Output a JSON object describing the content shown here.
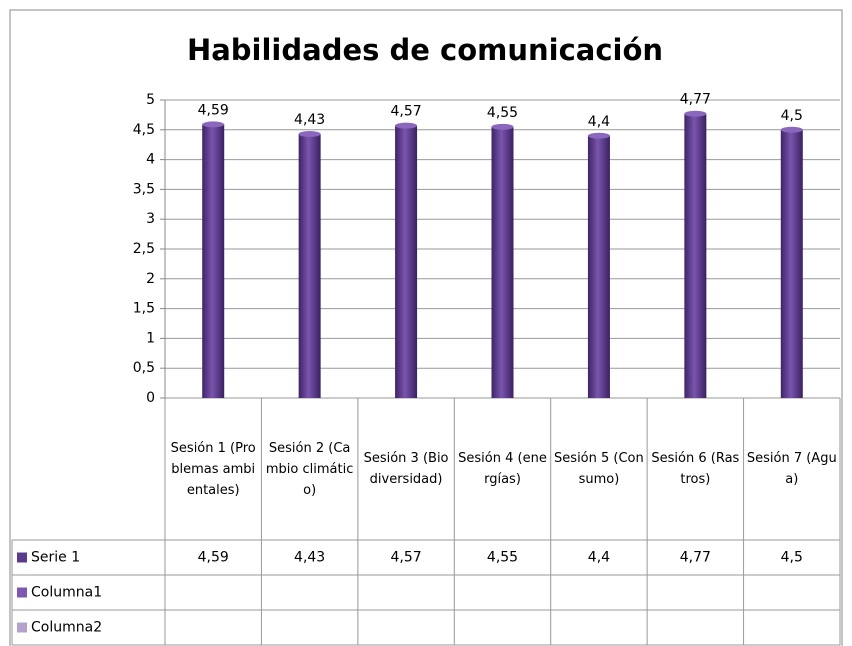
{
  "chart_data": {
    "type": "bar",
    "title": "Habilidades de comunicación",
    "categories": [
      "Sesión 1 (Problemas ambientales)",
      "Sesión 2 (Cambio climático)",
      "Sesión 3 (Biodiversidad)",
      "Sesión 4 (energías)",
      "Sesión 5 (Consumo)",
      "Sesión 6 (Rastros)",
      "Sesión 7 (Agua)"
    ],
    "series": [
      {
        "name": "Serie 1",
        "color": "#5b3a8c",
        "values": [
          4.59,
          4.43,
          4.57,
          4.55,
          4.4,
          4.77,
          4.5
        ],
        "value_labels": [
          "4,59",
          "4,43",
          "4,57",
          "4,55",
          "4,4",
          "4,77",
          "4,5"
        ]
      },
      {
        "name": "Columna1",
        "color": "#7e58b0",
        "values": [
          null,
          null,
          null,
          null,
          null,
          null,
          null
        ]
      },
      {
        "name": "Columna2",
        "color": "#b3a3cc",
        "values": [
          null,
          null,
          null,
          null,
          null,
          null,
          null
        ]
      }
    ],
    "ylim": [
      0,
      5
    ],
    "yticks": [
      0,
      {
        "value": 0.5,
        "label": "0,5"
      },
      1,
      {
        "value": 1.5,
        "label": "1,5"
      },
      2,
      {
        "value": 2.5,
        "label": "2,5"
      },
      3,
      {
        "value": 3.5,
        "label": "3,5"
      },
      4,
      {
        "value": 4.5,
        "label": "4,5"
      },
      5
    ],
    "grid": true
  }
}
